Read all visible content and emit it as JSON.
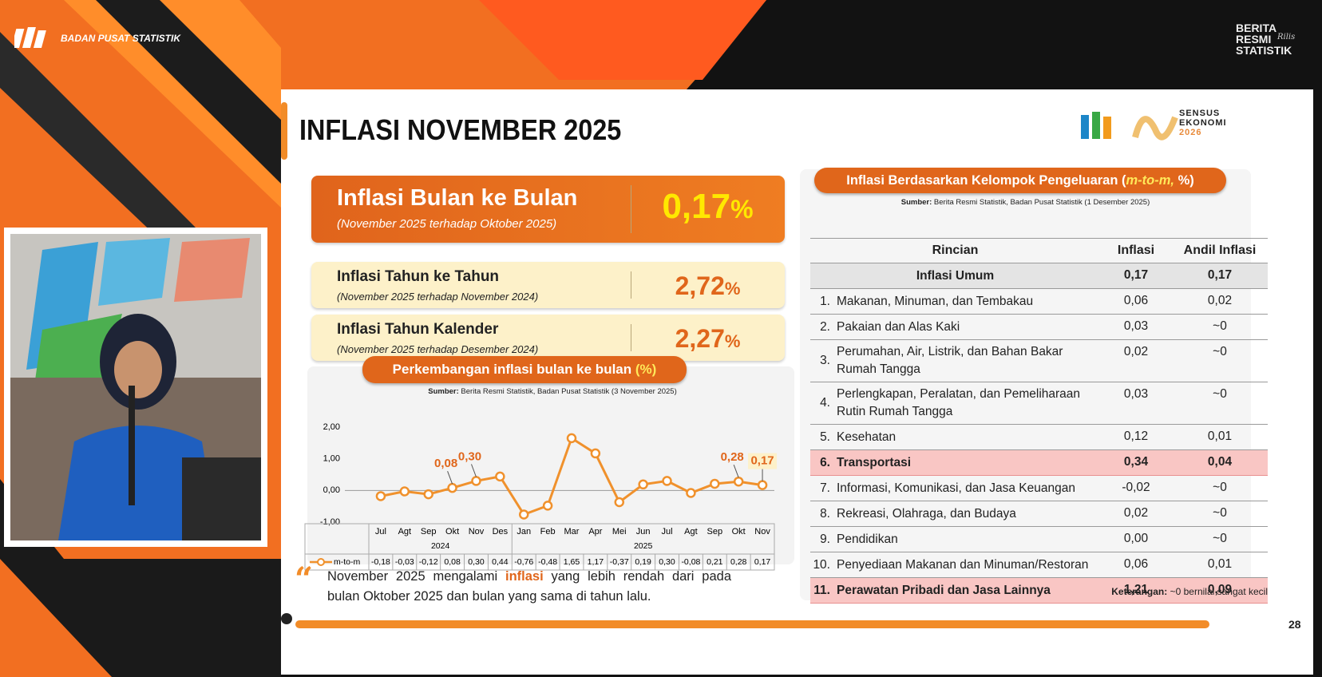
{
  "header": {
    "org": "BADAN PUSAT STATISTIK",
    "brs": [
      "BERITA",
      "RESMI",
      "STATISTIK"
    ],
    "brs_script": "Rilis"
  },
  "slide": {
    "title": "INFLASI NOVEMBER 2025",
    "sensus": [
      "SENSUS",
      "EKONOMI",
      "2026"
    ],
    "page": "28"
  },
  "summary": [
    {
      "label": "Inflasi Bulan ke Bulan",
      "period": "(November 2025 terhadap Oktober 2025)",
      "value": "0,17",
      "unit": "%"
    },
    {
      "label": "Inflasi Tahun ke Tahun",
      "period": "(November 2025 terhadap November 2024)",
      "value": "2,72",
      "unit": "%"
    },
    {
      "label": "Inflasi Tahun Kalender",
      "period": "(November 2025 terhadap Desember 2024)",
      "value": "2,27",
      "unit": "%"
    }
  ],
  "chart_data": {
    "type": "line",
    "title": "Perkembangan inflasi bulan ke bulan ",
    "title_unit": "(%)",
    "source_label": "Sumber:",
    "source": " Berita Resmi Statistik, Badan Pusat Statistik (3 November 2025)",
    "categories": [
      "Jul",
      "Agt",
      "Sep",
      "Okt",
      "Nov",
      "Des",
      "Jan",
      "Feb",
      "Mar",
      "Apr",
      "Mei",
      "Jun",
      "Jul",
      "Agt",
      "Sep",
      "Okt",
      "Nov"
    ],
    "years": [
      {
        "label": "2024",
        "months": 6
      },
      {
        "label": "2025",
        "months": 11
      }
    ],
    "series": [
      {
        "name": "m-to-m",
        "color": "#f0912c",
        "values": [
          -0.18,
          -0.03,
          -0.12,
          0.08,
          0.3,
          0.44,
          -0.76,
          -0.48,
          1.65,
          1.17,
          -0.37,
          0.19,
          0.3,
          -0.08,
          0.21,
          0.28,
          0.17
        ],
        "value_labels": [
          "-0,18",
          "-0,03",
          "-0,12",
          "0,08",
          "0,30",
          "0,44",
          "-0,76",
          "-0,48",
          "1,65",
          "1,17",
          "-0,37",
          "0,19",
          "0,30",
          "-0,08",
          "0,21",
          "0,28",
          "0,17"
        ]
      }
    ],
    "ylim": [
      -1,
      2
    ],
    "yticks": [
      {
        "value": 2,
        "label": "2,00"
      },
      {
        "value": 1,
        "label": "1,00"
      },
      {
        "value": 0,
        "label": "0,00"
      },
      {
        "value": -1,
        "label": "-1,00"
      }
    ],
    "labeled_points": [
      3,
      4,
      15,
      16
    ]
  },
  "table": {
    "title_parts": [
      "Inflasi Berdasarkan Kelompok Pengeluaran (",
      "m-to-m,",
      " %)"
    ],
    "source_label": "Sumber:",
    "source": " Berita Resmi Statistik, Badan Pusat Statistik (1 Desember 2025)",
    "columns": [
      "Rincian",
      "Inflasi",
      "Andil Inflasi"
    ],
    "rows": [
      {
        "name": "Inflasi Umum",
        "inflasi": "0,17",
        "andil": "0,17",
        "style": "total"
      },
      {
        "no": "1.",
        "name": "Makanan, Minuman, dan Tembakau",
        "inflasi": "0,06",
        "andil": "0,02"
      },
      {
        "no": "2.",
        "name": "Pakaian dan Alas Kaki",
        "inflasi": "0,03",
        "andil": "~0"
      },
      {
        "no": "3.",
        "name": "Perumahan, Air, Listrik, dan Bahan Bakar Rumah Tangga",
        "inflasi": "0,02",
        "andil": "~0"
      },
      {
        "no": "4.",
        "name": "Perlengkapan, Peralatan, dan Pemeliharaan Rutin Rumah Tangga",
        "inflasi": "0,03",
        "andil": "~0"
      },
      {
        "no": "5.",
        "name": "Kesehatan",
        "inflasi": "0,12",
        "andil": "0,01"
      },
      {
        "no": "6.",
        "name": "Transportasi",
        "inflasi": "0,34",
        "andil": "0,04",
        "style": "highlight"
      },
      {
        "no": "7.",
        "name": "Informasi, Komunikasi, dan Jasa Keuangan",
        "inflasi": "-0,02",
        "andil": "~0"
      },
      {
        "no": "8.",
        "name": "Rekreasi, Olahraga, dan Budaya",
        "inflasi": "0,02",
        "andil": "~0"
      },
      {
        "no": "9.",
        "name": "Pendidikan",
        "inflasi": "0,00",
        "andil": "~0"
      },
      {
        "no": "10.",
        "name": "Penyediaan Makanan dan Minuman/Restoran",
        "inflasi": "0,06",
        "andil": "0,01"
      },
      {
        "no": "11.",
        "name": "Perawatan Pribadi dan Jasa Lainnya",
        "inflasi": "1,21",
        "andil": "0,09",
        "style": "highlight"
      }
    ],
    "note_label": "Keterangan:",
    "note": " ~0 bernilai sangat kecil"
  },
  "quote": [
    "November 2025 mengalami ",
    "inflasi",
    " yang lebih rendah dari pada bulan Oktober 2025 dan bulan yang sama di tahun lalu."
  ]
}
